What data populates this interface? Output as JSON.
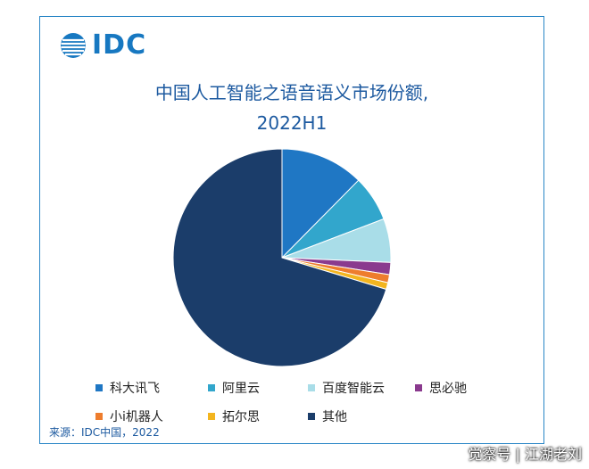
{
  "logo": {
    "text": "IDC"
  },
  "chart_data": {
    "type": "pie",
    "title_line1": "中国人工智能之语音语义市场份额,",
    "title_line2": "2022H1",
    "slices": [
      {
        "label": "科大讯飞",
        "value": 12.4,
        "color": "#1f77c4"
      },
      {
        "label": "阿里云",
        "value": 6.8,
        "color": "#32a6cc"
      },
      {
        "label": "百度智能云",
        "value": 6.5,
        "color": "#a9dde8"
      },
      {
        "label": "思必驰",
        "value": 1.8,
        "color": "#8a3a8e"
      },
      {
        "label": "小i机器人",
        "value": 1.2,
        "color": "#ee7d2d"
      },
      {
        "label": "拓尔思",
        "value": 1.0,
        "color": "#f3b51f"
      },
      {
        "label": "其他",
        "value": 70.3,
        "color": "#1b3d6a"
      }
    ],
    "legend_position": "bottom"
  },
  "source": "来源：IDC中国，2022",
  "watermark": "觉察号 | 江湖老刘"
}
